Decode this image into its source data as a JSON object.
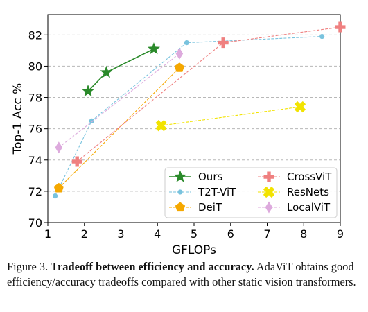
{
  "chart_data": {
    "type": "scatter",
    "xlabel": "GFLOPs",
    "ylabel": "Top-1 Acc %",
    "xlim": [
      1,
      9
    ],
    "ylim": [
      70,
      83.3
    ],
    "xticks": [
      1,
      2,
      3,
      4,
      5,
      6,
      7,
      8,
      9
    ],
    "yticks": [
      70,
      72,
      74,
      76,
      78,
      80,
      82
    ],
    "grid": "horizontal dashed",
    "legend_position": "lower-right",
    "series": [
      {
        "name": "Ours",
        "color": "#2a8a2a",
        "marker": "star",
        "points": [
          [
            2.1,
            78.4
          ],
          [
            2.6,
            79.6
          ],
          [
            3.9,
            81.1
          ]
        ]
      },
      {
        "name": "T2T-ViT",
        "color": "#79c3de",
        "marker": "dot",
        "points": [
          [
            1.2,
            71.7
          ],
          [
            2.2,
            76.5
          ],
          [
            4.8,
            81.5
          ],
          [
            8.5,
            81.9
          ]
        ]
      },
      {
        "name": "DeiT",
        "color": "#f5a800",
        "marker": "pentagon",
        "points": [
          [
            1.3,
            72.2
          ],
          [
            4.6,
            79.9
          ]
        ]
      },
      {
        "name": "CrossViT",
        "color": "#ef8080",
        "marker": "plus",
        "points": [
          [
            1.8,
            73.9
          ],
          [
            5.8,
            81.5
          ],
          [
            9.0,
            82.5
          ]
        ]
      },
      {
        "name": "ResNets",
        "color": "#f2e300",
        "marker": "x",
        "points": [
          [
            4.1,
            76.2
          ],
          [
            7.9,
            77.4
          ]
        ]
      },
      {
        "name": "LocalViT",
        "color": "#ddaadd",
        "marker": "diamond",
        "points": [
          [
            1.3,
            74.8
          ],
          [
            4.6,
            80.8
          ]
        ]
      }
    ]
  },
  "caption": {
    "label": "Figure 3.",
    "bold": "Tradeoff between efficiency and accuracy.",
    "text": "AdaViT obtains good efficiency/accuracy tradeoffs compared with other static vision transformers."
  }
}
